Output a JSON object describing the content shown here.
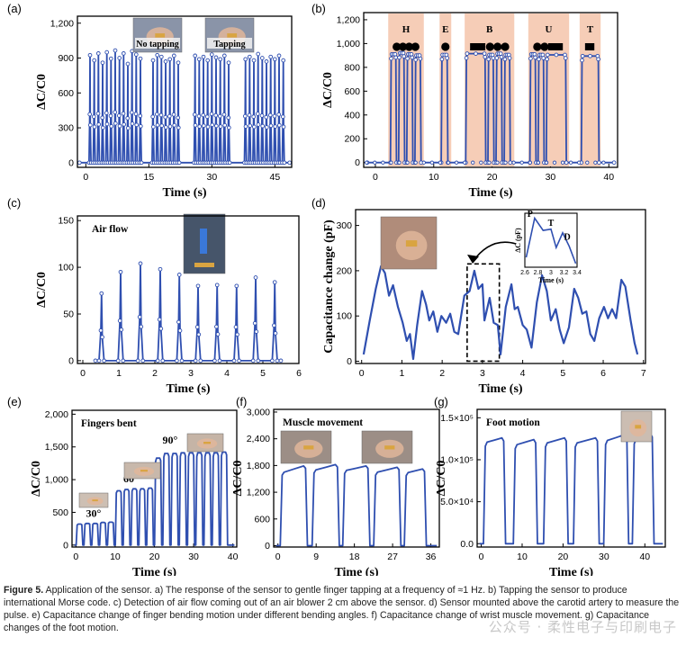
{
  "figure": {
    "caption_label": "Figure 5.",
    "caption_text": "Application of the sensor. a) The response of the sensor to gentle finger tapping at a frequency of ≈1 Hz. b) Tapping the sensor to produce international Morse code. c) Detection of air flow coming out of an air blower 2 cm above the sensor. d) Sensor mounted above the carotid artery to measure the pulse. e) Capacitance change of finger bending motion under different bending angles. f) Capacitance change of wrist muscle movement. g) Capacitance changes of the foot motion.",
    "watermark": "公众号 · 柔性电子与印刷电子"
  },
  "colors": {
    "line": "#2f4fb0",
    "shade": "#f6cdb7",
    "marker_fill": "#ffffff"
  },
  "chart_data": [
    {
      "id": "a",
      "panel_label": "(a)",
      "type": "line",
      "xlabel": "Time (s)",
      "ylabel": "ΔC/C0",
      "xlim": [
        -2,
        49
      ],
      "ylim": [
        -40,
        1260
      ],
      "xticks": [
        0,
        15,
        30,
        45
      ],
      "yticks": [
        0,
        300,
        600,
        900,
        1200
      ],
      "ytick_labels": [
        "0",
        "300",
        "600",
        "900",
        "1,200"
      ],
      "markers": true,
      "peaks": [
        {
          "t": 1.0,
          "v": 925
        },
        {
          "t": 2.0,
          "v": 880
        },
        {
          "t": 3.0,
          "v": 940
        },
        {
          "t": 4.0,
          "v": 860
        },
        {
          "t": 5.0,
          "v": 950
        },
        {
          "t": 6.0,
          "v": 895
        },
        {
          "t": 7.0,
          "v": 965
        },
        {
          "t": 8.0,
          "v": 900
        },
        {
          "t": 9.0,
          "v": 940
        },
        {
          "t": 10.0,
          "v": 850
        },
        {
          "t": 11.0,
          "v": 960
        },
        {
          "t": 12.0,
          "v": 930
        },
        {
          "t": 13.0,
          "v": 895
        },
        {
          "t": 16.0,
          "v": 880
        },
        {
          "t": 17.0,
          "v": 925
        },
        {
          "t": 18.0,
          "v": 910
        },
        {
          "t": 19.0,
          "v": 870
        },
        {
          "t": 20.0,
          "v": 890
        },
        {
          "t": 21.0,
          "v": 920
        },
        {
          "t": 22.0,
          "v": 860
        },
        {
          "t": 26.0,
          "v": 920
        },
        {
          "t": 27.0,
          "v": 890
        },
        {
          "t": 28.0,
          "v": 910
        },
        {
          "t": 29.0,
          "v": 880
        },
        {
          "t": 30.0,
          "v": 930
        },
        {
          "t": 31.0,
          "v": 905
        },
        {
          "t": 32.0,
          "v": 890
        },
        {
          "t": 33.0,
          "v": 920
        },
        {
          "t": 34.0,
          "v": 860
        },
        {
          "t": 38.0,
          "v": 890
        },
        {
          "t": 39.0,
          "v": 910
        },
        {
          "t": 40.0,
          "v": 880
        },
        {
          "t": 41.0,
          "v": 935
        },
        {
          "t": 42.0,
          "v": 900
        },
        {
          "t": 43.0,
          "v": 870
        },
        {
          "t": 44.0,
          "v": 910
        },
        {
          "t": 45.0,
          "v": 890
        },
        {
          "t": 46.0,
          "v": 920
        },
        {
          "t": 47.0,
          "v": 880
        }
      ],
      "insets": [
        {
          "label": "No tapping",
          "kind": "photo-hand"
        },
        {
          "label": "Tapping",
          "kind": "photo-hand"
        }
      ]
    },
    {
      "id": "b",
      "panel_label": "(b)",
      "type": "line",
      "xlabel": "Time (s)",
      "ylabel": "ΔC/C0",
      "xlim": [
        -2,
        41.5
      ],
      "ylim": [
        -40,
        1260
      ],
      "xticks": [
        0,
        10,
        20,
        30,
        40
      ],
      "yticks": [
        0,
        200,
        400,
        600,
        800,
        1000,
        1200
      ],
      "ytick_labels": [
        "0",
        "200",
        "400",
        "600",
        "800",
        "1,000",
        "1,200"
      ],
      "markers": true,
      "letters": [
        {
          "letter": "H",
          "start": 2.2,
          "end": 8.3,
          "code": [
            "dot",
            "dot",
            "dot",
            "dot"
          ]
        },
        {
          "letter": "E",
          "start": 11.0,
          "end": 13.0,
          "code": [
            "dot"
          ]
        },
        {
          "letter": "B",
          "start": 15.3,
          "end": 23.8,
          "code": [
            "dash",
            "dot",
            "dot",
            "dot"
          ]
        },
        {
          "letter": "U",
          "start": 26.2,
          "end": 33.2,
          "code": [
            "dot",
            "dot",
            "dash"
          ]
        },
        {
          "letter": "T",
          "start": 35.0,
          "end": 38.6,
          "code": [
            "dash"
          ]
        }
      ],
      "pulses": [
        {
          "start": 2.7,
          "end": 3.5,
          "v": 910
        },
        {
          "start": 4.1,
          "end": 4.9,
          "v": 920
        },
        {
          "start": 5.5,
          "end": 6.3,
          "v": 910
        },
        {
          "start": 6.9,
          "end": 7.7,
          "v": 900
        },
        {
          "start": 11.4,
          "end": 12.3,
          "v": 905
        },
        {
          "start": 15.6,
          "end": 18.8,
          "v": 915
        },
        {
          "start": 19.4,
          "end": 20.2,
          "v": 905
        },
        {
          "start": 20.8,
          "end": 21.6,
          "v": 915
        },
        {
          "start": 22.2,
          "end": 23.0,
          "v": 905
        },
        {
          "start": 26.6,
          "end": 27.4,
          "v": 910
        },
        {
          "start": 28.0,
          "end": 28.8,
          "v": 905
        },
        {
          "start": 29.4,
          "end": 32.6,
          "v": 905
        },
        {
          "start": 35.4,
          "end": 38.2,
          "v": 895
        }
      ]
    },
    {
      "id": "c",
      "panel_label": "(c)",
      "type": "line",
      "xlabel": "Time (s)",
      "ylabel": "ΔC/C0",
      "xlim": [
        -0.15,
        6.0
      ],
      "ylim": [
        -3,
        155
      ],
      "xticks": [
        0,
        1,
        2,
        3,
        4,
        5,
        6
      ],
      "yticks": [
        0,
        50,
        100,
        150
      ],
      "markers": true,
      "annotation": "Air flow",
      "peaks": [
        {
          "t": 0.52,
          "v": 72
        },
        {
          "t": 1.05,
          "v": 95
        },
        {
          "t": 1.6,
          "v": 104
        },
        {
          "t": 2.15,
          "v": 98
        },
        {
          "t": 2.68,
          "v": 92
        },
        {
          "t": 3.2,
          "v": 80
        },
        {
          "t": 3.73,
          "v": 81
        },
        {
          "t": 4.27,
          "v": 80
        },
        {
          "t": 4.8,
          "v": 89
        },
        {
          "t": 5.33,
          "v": 84
        }
      ]
    },
    {
      "id": "d",
      "panel_label": "(d)",
      "type": "line",
      "xlabel": "Time (s)",
      "ylabel": "Capacitance change (pF)",
      "xlim": [
        -0.15,
        7.05
      ],
      "ylim": [
        -5,
        335
      ],
      "xticks": [
        0,
        1,
        2,
        3,
        4,
        5,
        6,
        7
      ],
      "yticks": [
        0,
        100,
        200,
        300
      ],
      "points": [
        [
          0.05,
          15
        ],
        [
          0.2,
          90
        ],
        [
          0.35,
          160
        ],
        [
          0.48,
          210
        ],
        [
          0.58,
          195
        ],
        [
          0.68,
          145
        ],
        [
          0.78,
          168
        ],
        [
          0.9,
          120
        ],
        [
          1.02,
          85
        ],
        [
          1.12,
          45
        ],
        [
          1.2,
          60
        ],
        [
          1.28,
          5
        ],
        [
          1.38,
          80
        ],
        [
          1.5,
          155
        ],
        [
          1.6,
          125
        ],
        [
          1.68,
          90
        ],
        [
          1.78,
          110
        ],
        [
          1.88,
          65
        ],
        [
          1.98,
          100
        ],
        [
          2.1,
          85
        ],
        [
          2.2,
          105
        ],
        [
          2.3,
          65
        ],
        [
          2.4,
          60
        ],
        [
          2.55,
          145
        ],
        [
          2.68,
          155
        ],
        [
          2.8,
          200
        ],
        [
          2.9,
          160
        ],
        [
          3.0,
          170
        ],
        [
          3.05,
          90
        ],
        [
          3.18,
          140
        ],
        [
          3.28,
          85
        ],
        [
          3.38,
          80
        ],
        [
          3.45,
          15
        ],
        [
          3.58,
          120
        ],
        [
          3.72,
          170
        ],
        [
          3.8,
          115
        ],
        [
          3.88,
          120
        ],
        [
          4.0,
          80
        ],
        [
          4.1,
          70
        ],
        [
          4.22,
          30
        ],
        [
          4.35,
          130
        ],
        [
          4.48,
          190
        ],
        [
          4.6,
          155
        ],
        [
          4.7,
          90
        ],
        [
          4.82,
          115
        ],
        [
          4.92,
          70
        ],
        [
          5.02,
          40
        ],
        [
          5.15,
          75
        ],
        [
          5.28,
          160
        ],
        [
          5.38,
          140
        ],
        [
          5.48,
          105
        ],
        [
          5.58,
          110
        ],
        [
          5.68,
          60
        ],
        [
          5.78,
          45
        ],
        [
          5.9,
          95
        ],
        [
          6.02,
          120
        ],
        [
          6.12,
          95
        ],
        [
          6.22,
          115
        ],
        [
          6.32,
          95
        ],
        [
          6.45,
          180
        ],
        [
          6.55,
          165
        ],
        [
          6.68,
          90
        ],
        [
          6.78,
          40
        ],
        [
          6.85,
          15
        ]
      ],
      "highlight_box": {
        "x": [
          2.62,
          3.42
        ],
        "y": [
          0,
          215
        ]
      },
      "inset": {
        "xlabel": "Time (s)",
        "ylabel": "ΔC (pF)",
        "xlim": [
          2.6,
          3.4
        ],
        "xticks": [
          2.6,
          2.8,
          3.0,
          3.2,
          3.4
        ],
        "points": [
          [
            2.62,
            40
          ],
          [
            2.75,
            200
          ],
          [
            2.88,
            150
          ],
          [
            3.0,
            155
          ],
          [
            3.08,
            80
          ],
          [
            3.18,
            140
          ],
          [
            3.28,
            85
          ],
          [
            3.38,
            15
          ]
        ],
        "annotations": [
          {
            "text": "P",
            "t": 2.68
          },
          {
            "text": "T",
            "t": 3.0
          },
          {
            "text": "D",
            "t": 3.25
          }
        ]
      }
    },
    {
      "id": "e",
      "panel_label": "(e)",
      "type": "line",
      "xlabel": "Time (s)",
      "ylabel": "ΔC/C0",
      "xlim": [
        -1,
        41
      ],
      "ylim": [
        -30,
        2060
      ],
      "xticks": [
        0,
        10,
        20,
        30,
        40
      ],
      "yticks": [
        0,
        500,
        1000,
        1500,
        2000
      ],
      "ytick_labels": [
        "0",
        "500",
        "1,000",
        "1,500",
        "2,000"
      ],
      "annotation": "Fingers bent",
      "angle_labels": [
        {
          "text": "30°",
          "t": 4.5,
          "v": 430
        },
        {
          "text": "60°",
          "t": 14,
          "v": 960
        },
        {
          "text": "90°",
          "t": 24,
          "v": 1550
        }
      ],
      "pulses": [
        {
          "start": 0.3,
          "end": 1.5,
          "v": 320
        },
        {
          "start": 2.3,
          "end": 3.5,
          "v": 330
        },
        {
          "start": 4.3,
          "end": 5.5,
          "v": 330
        },
        {
          "start": 6.3,
          "end": 7.5,
          "v": 345
        },
        {
          "start": 8.3,
          "end": 9.5,
          "v": 350
        },
        {
          "start": 10.3,
          "end": 11.5,
          "v": 830
        },
        {
          "start": 12.3,
          "end": 13.5,
          "v": 850
        },
        {
          "start": 14.3,
          "end": 15.5,
          "v": 860
        },
        {
          "start": 16.3,
          "end": 17.5,
          "v": 860
        },
        {
          "start": 18.3,
          "end": 19.5,
          "v": 870
        },
        {
          "start": 20.3,
          "end": 21.6,
          "v": 1330
        },
        {
          "start": 22.4,
          "end": 23.7,
          "v": 1400
        },
        {
          "start": 24.5,
          "end": 25.8,
          "v": 1400
        },
        {
          "start": 26.6,
          "end": 27.9,
          "v": 1410
        },
        {
          "start": 28.7,
          "end": 30.0,
          "v": 1410
        },
        {
          "start": 30.8,
          "end": 32.1,
          "v": 1410
        },
        {
          "start": 32.9,
          "end": 34.2,
          "v": 1410
        },
        {
          "start": 35.0,
          "end": 36.3,
          "v": 1410
        },
        {
          "start": 37.1,
          "end": 38.4,
          "v": 1420
        }
      ]
    },
    {
      "id": "f",
      "panel_label": "(f)",
      "type": "line",
      "xlabel": "Time (s)",
      "ylabel": "ΔC/C0",
      "xlim": [
        -1,
        38
      ],
      "ylim": [
        -30,
        3060
      ],
      "xticks": [
        0,
        9,
        18,
        27,
        36
      ],
      "yticks": [
        0,
        600,
        1200,
        1800,
        2400,
        3000
      ],
      "ytick_labels": [
        "0",
        "600",
        "1,200",
        "1,800",
        "2,400",
        "3,000"
      ],
      "annotation": "Muscle movement",
      "pulses": [
        {
          "start": 1.0,
          "end": 6.5,
          "v": 1650,
          "v2": 1790
        },
        {
          "start": 8.5,
          "end": 14.0,
          "v": 1700,
          "v2": 1820
        },
        {
          "start": 15.7,
          "end": 21.2,
          "v": 1690,
          "v2": 1790
        },
        {
          "start": 23.0,
          "end": 28.5,
          "v": 1650,
          "v2": 1760
        },
        {
          "start": 30.2,
          "end": 34.5,
          "v": 1640,
          "v2": 1720
        }
      ]
    },
    {
      "id": "g",
      "panel_label": "(g)",
      "type": "line",
      "xlabel": "Time (s)",
      "ylabel": "ΔC/C0",
      "xlim": [
        -1,
        45
      ],
      "ylim": [
        -4000,
        160000
      ],
      "xticks": [
        0,
        10,
        20,
        30,
        40
      ],
      "yticks": [
        0,
        50000,
        100000,
        150000
      ],
      "ytick_labels": [
        "0.0",
        "5.0×10⁴",
        "1.0×10⁵",
        "1.5×10⁵"
      ],
      "annotation": "Foot motion",
      "pulses": [
        {
          "start": 1.0,
          "end": 5.5,
          "v": 121000,
          "v2": 126000
        },
        {
          "start": 8.3,
          "end": 13.3,
          "v": 118000,
          "v2": 124000
        },
        {
          "start": 15.7,
          "end": 20.8,
          "v": 120000,
          "v2": 126000
        },
        {
          "start": 23.0,
          "end": 28.4,
          "v": 120000,
          "v2": 126000
        },
        {
          "start": 30.4,
          "end": 35.6,
          "v": 123000,
          "v2": 130000
        },
        {
          "start": 37.4,
          "end": 41.8,
          "v": 124000,
          "v2": 131000
        }
      ]
    }
  ]
}
